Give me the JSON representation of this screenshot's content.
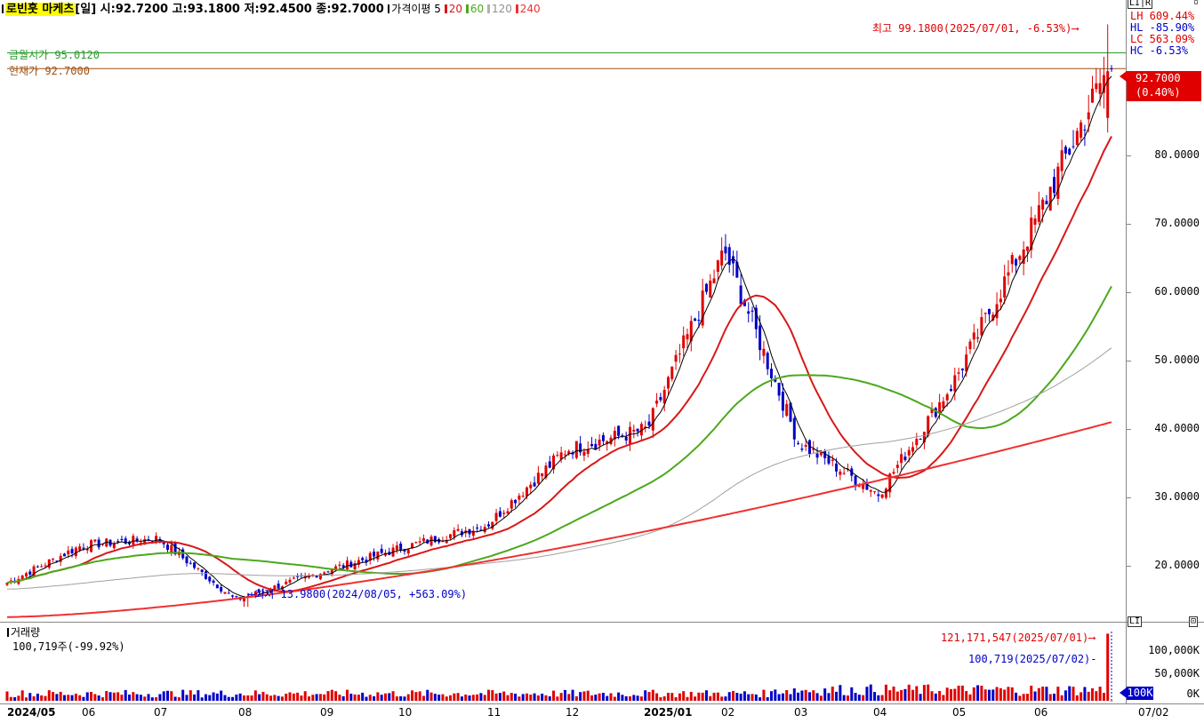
{
  "header": {
    "name": "로빈훗 마케츠",
    "period": "[일]",
    "open": "시:92.7200",
    "high": "고:93.1800",
    "low": "저:92.4500",
    "close": "종:92.7000",
    "ma_title": "가격이평",
    "ma5": "5",
    "ma20": "20",
    "ma60": "60",
    "ma120": "120",
    "ma240": "240"
  },
  "price_lines": {
    "month_open_label": "금월시가 95.0120",
    "current_label": "현재가 92.7000"
  },
  "annotations": {
    "high_label": "최고 99.1800(2025/07/01, -6.53%)⟶",
    "low_label": "⟵최저 13.9800(2024/08/05, +563.09%)"
  },
  "stats": {
    "lh": "LH 609.44%",
    "hl": "HL -85.90%",
    "lc": "LC 563.09%",
    "hc": "HC  -6.53%"
  },
  "price_badge": {
    "value": "92.7000",
    "change": "(0.40%)"
  },
  "price_axis": [
    "80.0000",
    "70.0000",
    "60.0000",
    "50.0000",
    "40.0000",
    "30.0000",
    "20.0000"
  ],
  "volume": {
    "title": "거래량",
    "value": "100,719주(-99.92%)",
    "max_label": "121,171,547(2025/07/01)⟶",
    "last_label": "100,719(2025/07/02)-",
    "axis": [
      "100,000K",
      "50,000K",
      "0K"
    ],
    "badge": "100K"
  },
  "x_axis": {
    "labels": [
      "2024/05",
      "06",
      "07",
      "08",
      "09",
      "10",
      "11",
      "12",
      "2025/01",
      "02",
      "03",
      "04",
      "05",
      "06"
    ],
    "current_date": "07/02"
  },
  "window_buttons": {
    "price": "LI|R",
    "volume": "LI",
    "close": "⊡"
  },
  "colors": {
    "up": "#e00000",
    "down": "#0000c8",
    "ma5": "#000000",
    "ma20": "#d81818",
    "ma60": "#4ca81c",
    "ma120": "#a0a0a0",
    "ma240": "#f03030",
    "month_open_line": "#2a9a2a",
    "current_line": "#a05010"
  },
  "chart_data": {
    "type": "candlestick",
    "price_axis_labels": [
      20,
      30,
      40,
      50,
      60,
      70,
      80
    ],
    "ylim": [
      12,
      101
    ],
    "period_start": "2024/05",
    "period_end": "2025/07/02",
    "anchors": [
      {
        "date": "2024/05",
        "close": 17.5
      },
      {
        "date": "2024/06",
        "close": 23.0
      },
      {
        "date": "2024/07",
        "close": 24.0
      },
      {
        "date": "2024/08/05",
        "close": 15.0,
        "low": 13.98
      },
      {
        "date": "2024/09",
        "close": 19.0
      },
      {
        "date": "2024/10",
        "close": 22.5
      },
      {
        "date": "2024/11",
        "close": 26.0
      },
      {
        "date": "2024/12",
        "close": 37.0
      },
      {
        "date": "2025/01",
        "close": 40.0
      },
      {
        "date": "2025/02",
        "close": 66.0
      },
      {
        "date": "2025/03",
        "close": 38.0
      },
      {
        "date": "2025/04",
        "close": 30.5
      },
      {
        "date": "2025/05",
        "close": 47.0
      },
      {
        "date": "2025/06",
        "close": 70.0
      },
      {
        "date": "2025/07/01",
        "close": 92.33,
        "high": 99.18
      },
      {
        "date": "2025/07/02",
        "open": 92.72,
        "high": 93.18,
        "low": 92.45,
        "close": 92.7
      }
    ],
    "moving_averages": [
      "5",
      "20",
      "60",
      "120",
      "240"
    ],
    "month_open": 95.012,
    "current": 92.7,
    "volume_axis": [
      0,
      50000000,
      100000000
    ],
    "volume_max": 121171547,
    "volume_last": 100719
  }
}
